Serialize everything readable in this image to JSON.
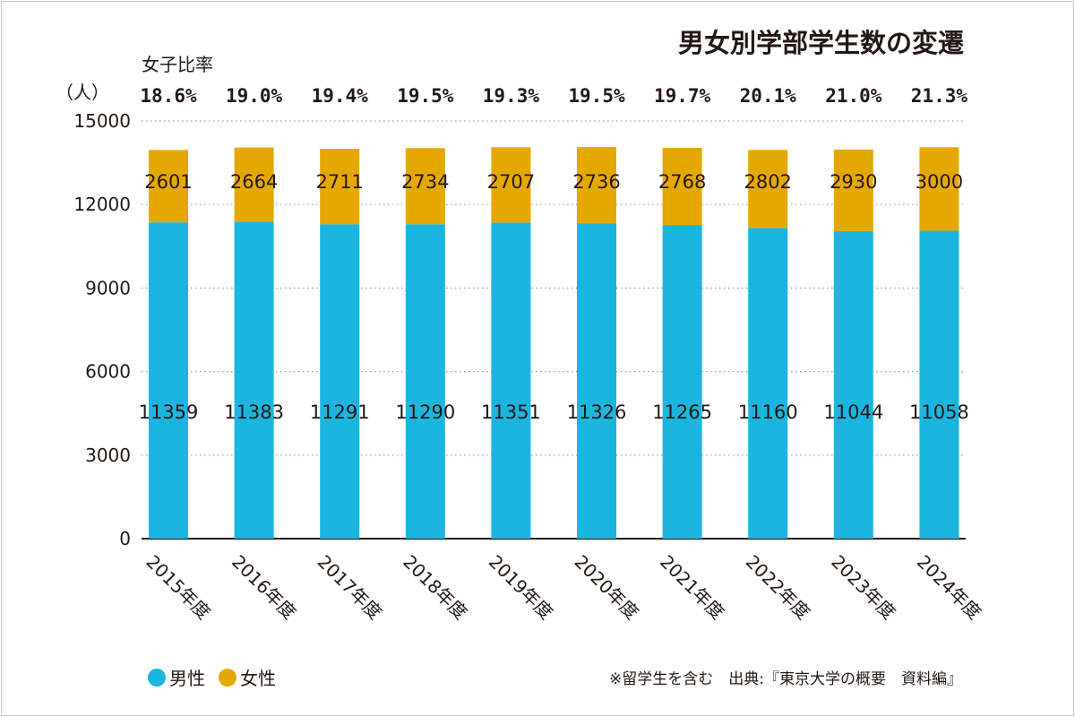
{
  "chart_data": {
    "type": "bar",
    "stacked": true,
    "title": "男女別学部学生数の変遷",
    "ylabel": "（人）",
    "ylim": [
      0,
      15000
    ],
    "yticks": [
      0,
      3000,
      6000,
      9000,
      12000,
      15000
    ],
    "grid": true,
    "legend_placement": "bottom-left",
    "categories": [
      "2015年度",
      "2016年度",
      "2017年度",
      "2018年度",
      "2019年度",
      "2020年度",
      "2021年度",
      "2022年度",
      "2023年度",
      "2024年度"
    ],
    "series": [
      {
        "name": "男性",
        "color": "#1cb5e0",
        "values": [
          11359,
          11383,
          11291,
          11290,
          11351,
          11326,
          11265,
          11160,
          11044,
          11058
        ]
      },
      {
        "name": "女性",
        "color": "#e5a800",
        "values": [
          2601,
          2664,
          2711,
          2734,
          2707,
          2736,
          2768,
          2802,
          2930,
          3000
        ]
      }
    ],
    "ratio_heading": "女子比率",
    "female_ratio": [
      "18.6%",
      "19.0%",
      "19.4%",
      "19.5%",
      "19.3%",
      "19.5%",
      "19.7%",
      "20.1%",
      "21.0%",
      "21.3%"
    ],
    "note": "※留学生を含む　出典:『東京大学の概要　資料編』"
  }
}
